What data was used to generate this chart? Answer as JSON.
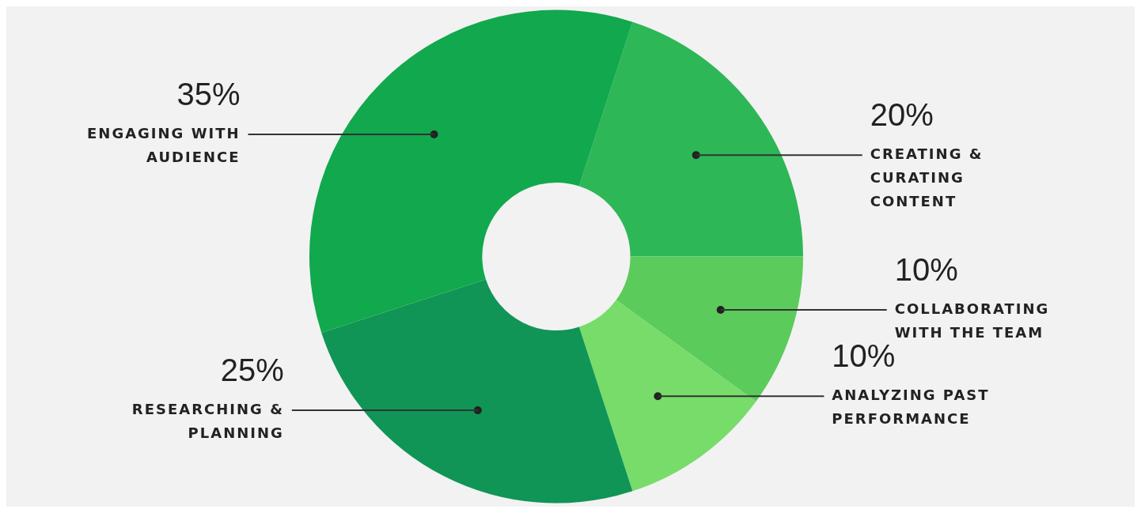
{
  "chart_data": {
    "type": "donut",
    "categories": [
      "CREATING & CURATING CONTENT",
      "COLLABORATING WITH THE TEAM",
      "ANALYZING PAST PERFORMANCE",
      "RESEARCHING & PLANNING",
      "ENGAGING WITH AUDIENCE"
    ],
    "values": [
      20,
      10,
      10,
      25,
      35
    ],
    "value_labels": [
      "20%",
      "10%",
      "10%",
      "25%",
      "35%"
    ],
    "colors": [
      "#2db756",
      "#5bcb5c",
      "#77dc6a",
      "#109556",
      "#12a84e"
    ]
  }
}
